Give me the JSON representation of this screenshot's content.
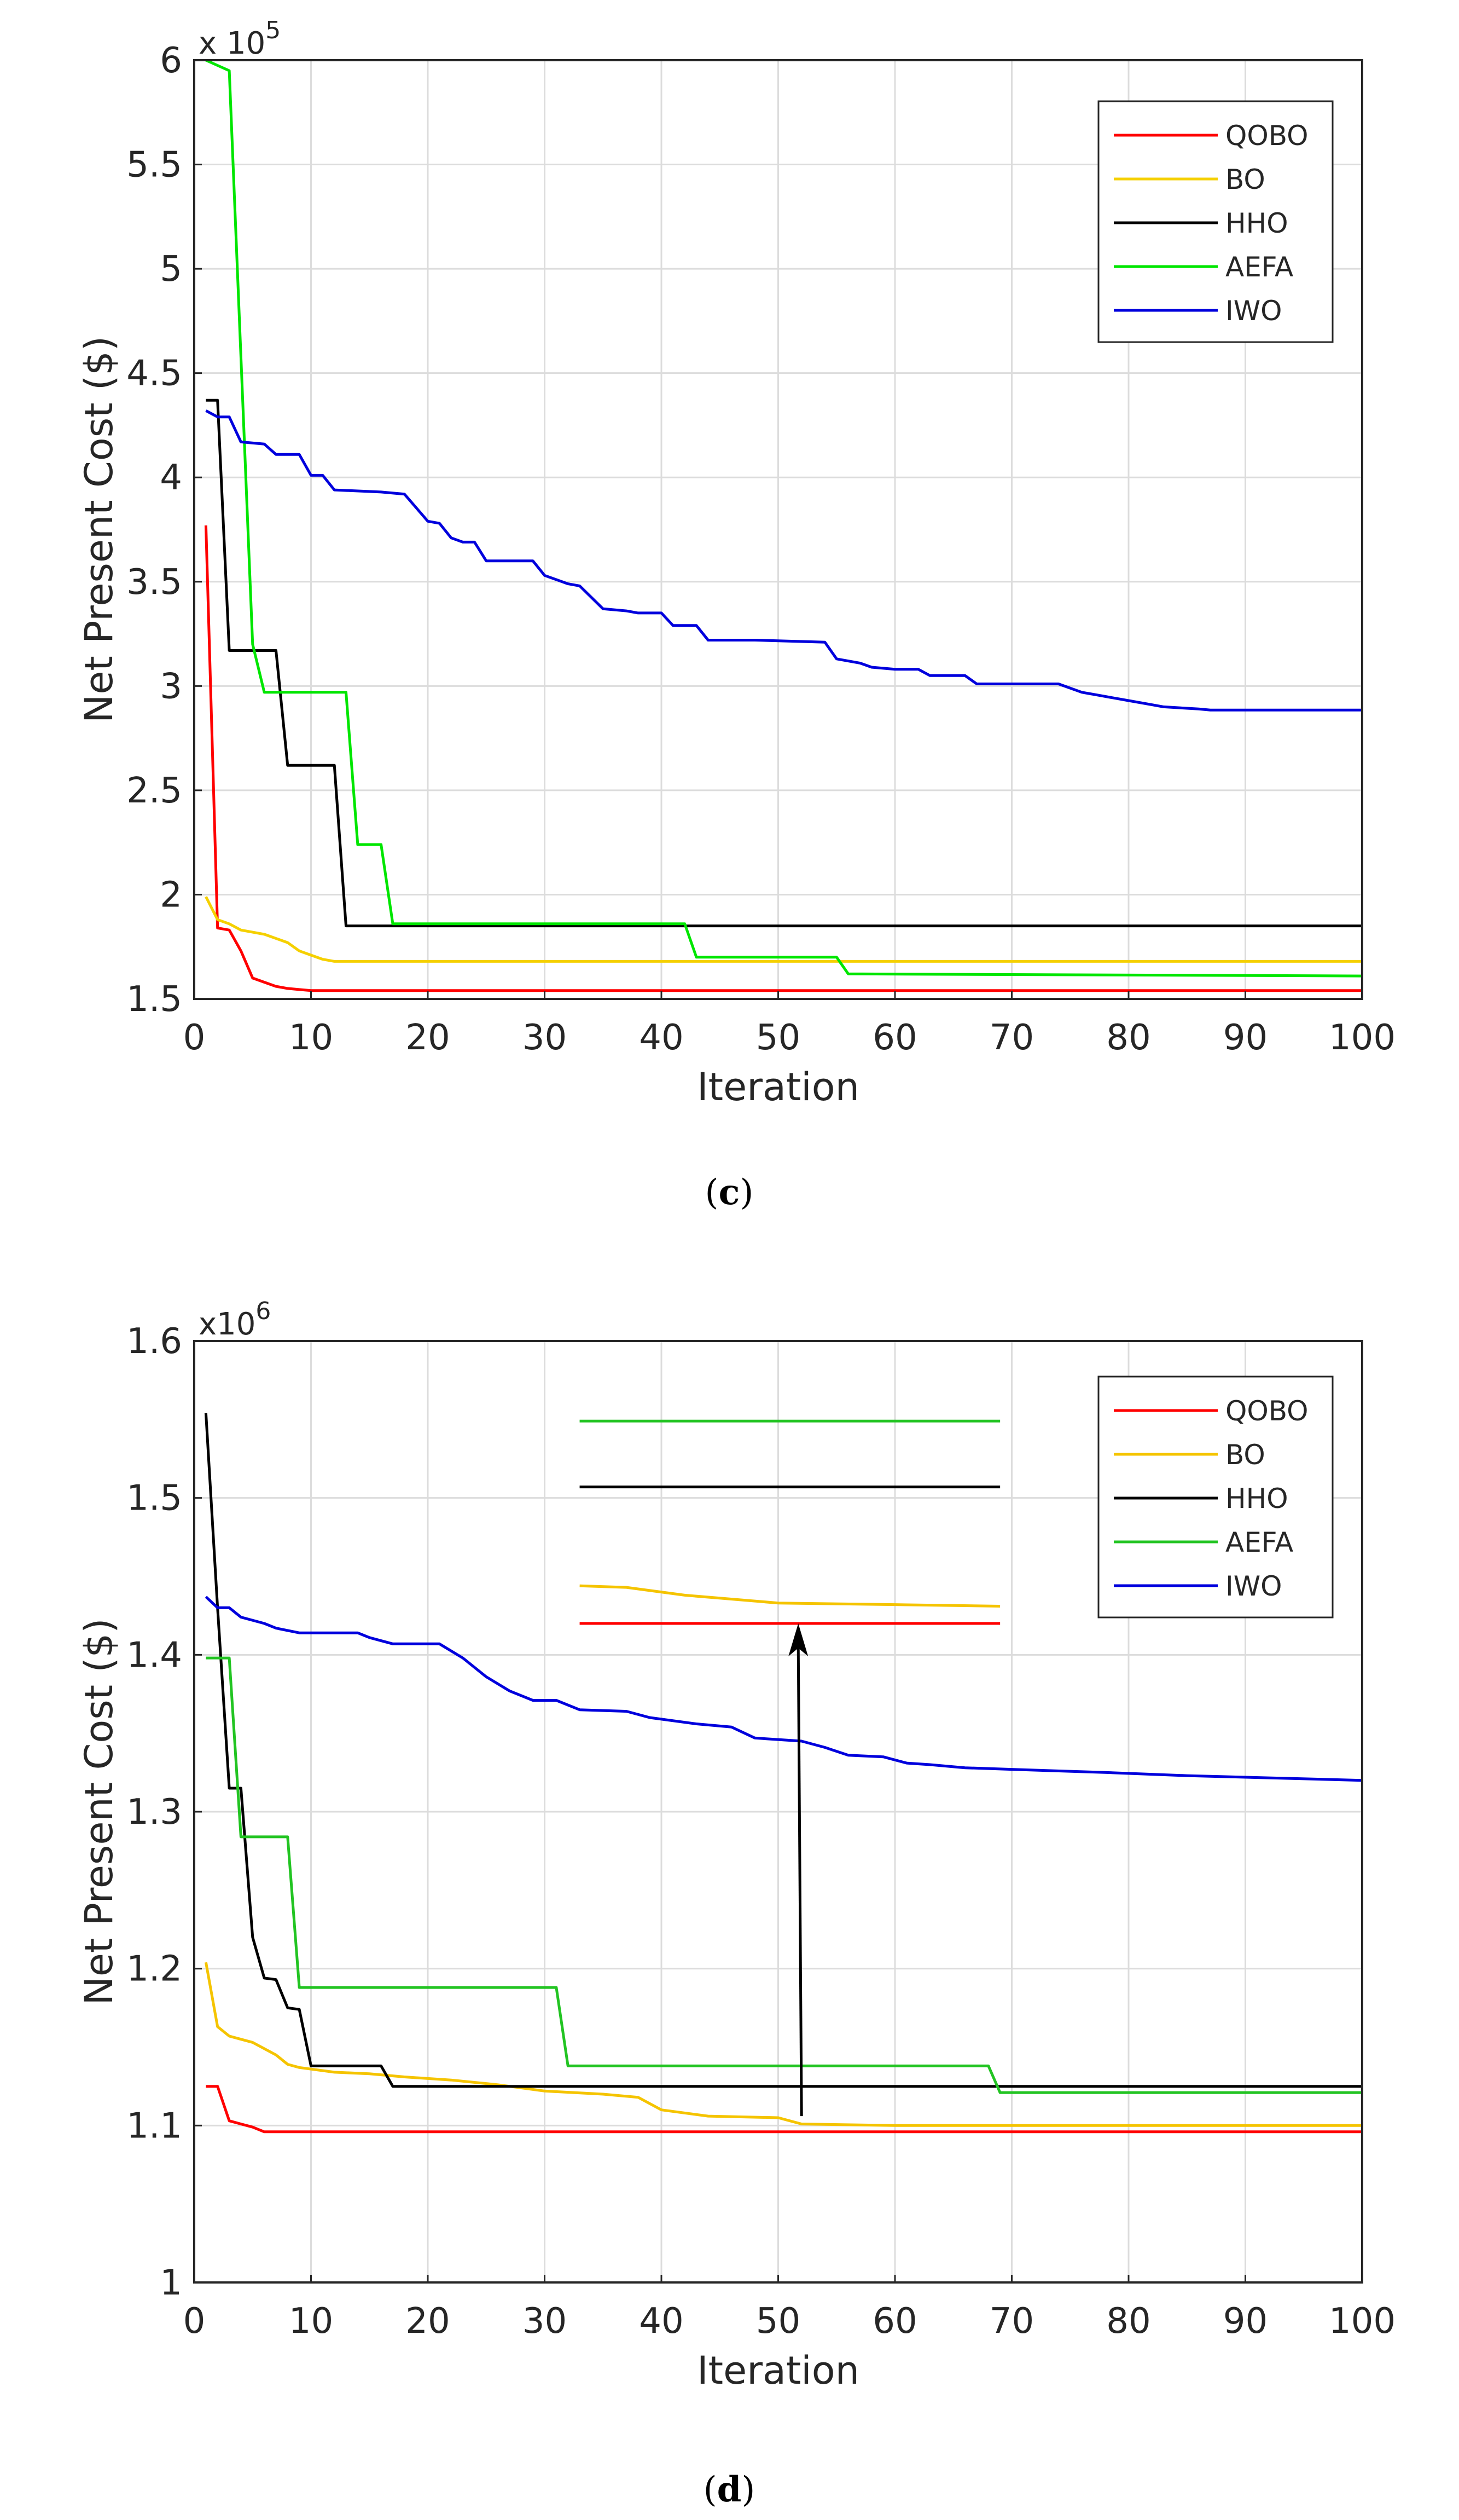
{
  "chart_data": [
    {
      "panel": "c",
      "type": "line",
      "caption_open": "(",
      "caption_letter": "c",
      "caption_close": ")",
      "xlabel": "Iteration",
      "ylabel": "Net Present Cost ($)",
      "multiplier": "x 10",
      "multiplier_exp": "5",
      "xlim": [
        0,
        100
      ],
      "ylim": [
        1.5,
        6
      ],
      "xticks": [
        0,
        10,
        20,
        30,
        40,
        50,
        60,
        70,
        80,
        90,
        100
      ],
      "yticks": [
        1.5,
        2,
        2.5,
        3,
        3.5,
        4,
        4.5,
        5,
        5.5,
        6
      ],
      "ytick_labels": [
        "1.5",
        "2",
        "2.5",
        "3",
        "3.5",
        "4",
        "4.5",
        "5",
        "5.5",
        "6"
      ],
      "grid": true,
      "legend_position": "top-right",
      "series": [
        {
          "name": "QOBO",
          "color": "#ff0000",
          "points": [
            [
              1,
              3.77
            ],
            [
              2,
              1.84
            ],
            [
              3,
              1.83
            ],
            [
              4,
              1.73
            ],
            [
              5,
              1.6
            ],
            [
              6,
              1.58
            ],
            [
              7,
              1.56
            ],
            [
              8,
              1.55
            ],
            [
              9,
              1.545
            ],
            [
              10,
              1.54
            ],
            [
              100,
              1.54
            ]
          ]
        },
        {
          "name": "BO",
          "color": "#f5d000",
          "points": [
            [
              1,
              1.99
            ],
            [
              2,
              1.88
            ],
            [
              3,
              1.86
            ],
            [
              4,
              1.83
            ],
            [
              6,
              1.81
            ],
            [
              8,
              1.77
            ],
            [
              9,
              1.73
            ],
            [
              10,
              1.71
            ],
            [
              11,
              1.69
            ],
            [
              12,
              1.68
            ],
            [
              100,
              1.68
            ]
          ]
        },
        {
          "name": "HHO",
          "color": "#000000",
          "points": [
            [
              1,
              4.37
            ],
            [
              2,
              4.37
            ],
            [
              3,
              3.17
            ],
            [
              7,
              3.17
            ],
            [
              8,
              2.62
            ],
            [
              12,
              2.62
            ],
            [
              13,
              1.85
            ],
            [
              100,
              1.85
            ]
          ]
        },
        {
          "name": "AEFA",
          "color": "#00e600",
          "points": [
            [
              1,
              6.0
            ],
            [
              3,
              5.95
            ],
            [
              5,
              3.2
            ],
            [
              6,
              2.97
            ],
            [
              13,
              2.97
            ],
            [
              14,
              2.24
            ],
            [
              16,
              2.24
            ],
            [
              17,
              1.86
            ],
            [
              42,
              1.86
            ],
            [
              43,
              1.7
            ],
            [
              55,
              1.7
            ],
            [
              56,
              1.62
            ],
            [
              100,
              1.61
            ]
          ]
        },
        {
          "name": "IWO",
          "color": "#0000dd",
          "points": [
            [
              1,
              4.32
            ],
            [
              2,
              4.29
            ],
            [
              3,
              4.29
            ],
            [
              4,
              4.17
            ],
            [
              6,
              4.16
            ],
            [
              7,
              4.11
            ],
            [
              9,
              4.11
            ],
            [
              10,
              4.01
            ],
            [
              11,
              4.01
            ],
            [
              12,
              3.94
            ],
            [
              16,
              3.93
            ],
            [
              18,
              3.92
            ],
            [
              20,
              3.79
            ],
            [
              21,
              3.78
            ],
            [
              22,
              3.71
            ],
            [
              23,
              3.69
            ],
            [
              24,
              3.69
            ],
            [
              25,
              3.6
            ],
            [
              29,
              3.6
            ],
            [
              30,
              3.53
            ],
            [
              32,
              3.49
            ],
            [
              33,
              3.48
            ],
            [
              35,
              3.37
            ],
            [
              37,
              3.36
            ],
            [
              38,
              3.35
            ],
            [
              40,
              3.35
            ],
            [
              41,
              3.29
            ],
            [
              43,
              3.29
            ],
            [
              44,
              3.22
            ],
            [
              48,
              3.22
            ],
            [
              54,
              3.21
            ],
            [
              55,
              3.13
            ],
            [
              57,
              3.11
            ],
            [
              58,
              3.09
            ],
            [
              60,
              3.08
            ],
            [
              62,
              3.08
            ],
            [
              63,
              3.05
            ],
            [
              66,
              3.05
            ],
            [
              67,
              3.01
            ],
            [
              74,
              3.01
            ],
            [
              76,
              2.97
            ],
            [
              77,
              2.96
            ],
            [
              80,
              2.93
            ],
            [
              82,
              2.91
            ],
            [
              83,
              2.9
            ],
            [
              86,
              2.89
            ],
            [
              87,
              2.885
            ],
            [
              100,
              2.885
            ]
          ]
        }
      ]
    },
    {
      "panel": "d",
      "type": "line",
      "caption_open": "(",
      "caption_letter": "d",
      "caption_close": ")",
      "xlabel": "Iteration",
      "ylabel": "Net Present Cost ($)",
      "multiplier": "x10",
      "multiplier_exp": "6",
      "xlim": [
        0,
        100
      ],
      "ylim": [
        1.0,
        1.6
      ],
      "xticks": [
        0,
        10,
        20,
        30,
        40,
        50,
        60,
        70,
        80,
        90,
        100
      ],
      "yticks": [
        1.0,
        1.1,
        1.2,
        1.3,
        1.4,
        1.5,
        1.6
      ],
      "ytick_labels": [
        "1",
        "1.1",
        "1.2",
        "1.3",
        "1.4",
        "1.5",
        "1.6"
      ],
      "grid": true,
      "legend_position": "top-right",
      "annotation": "zoom-inset with arrow pointing up at iteration 52",
      "inset": {
        "x_range": [
          33,
          69
        ],
        "QOBO": 1.42,
        "BO": [
          [
            33,
            1.444
          ],
          [
            37,
            1.443
          ],
          [
            42,
            1.438
          ],
          [
            50,
            1.433
          ],
          [
            60,
            1.432
          ],
          [
            69,
            1.431
          ]
        ],
        "HHO": 1.507,
        "AEFA": 1.549,
        "arrow_x": 52,
        "arrow_from": 1.106,
        "arrow_to": 1.42
      },
      "series": [
        {
          "name": "QOBO",
          "color": "#ff0000",
          "points": [
            [
              1,
              1.125
            ],
            [
              2,
              1.125
            ],
            [
              3,
              1.103
            ],
            [
              4,
              1.101
            ],
            [
              5,
              1.099
            ],
            [
              6,
              1.096
            ],
            [
              100,
              1.096
            ]
          ]
        },
        {
          "name": "BO",
          "color": "#f5c400",
          "points": [
            [
              1,
              1.204
            ],
            [
              2,
              1.163
            ],
            [
              3,
              1.157
            ],
            [
              5,
              1.153
            ],
            [
              7,
              1.145
            ],
            [
              8,
              1.139
            ],
            [
              9,
              1.137
            ],
            [
              12,
              1.134
            ],
            [
              15,
              1.133
            ],
            [
              18,
              1.131
            ],
            [
              22,
              1.129
            ],
            [
              26,
              1.126
            ],
            [
              30,
              1.122
            ],
            [
              35,
              1.12
            ],
            [
              38,
              1.118
            ],
            [
              40,
              1.11
            ],
            [
              44,
              1.106
            ],
            [
              50,
              1.105
            ],
            [
              52,
              1.101
            ],
            [
              60,
              1.1
            ],
            [
              100,
              1.1
            ]
          ]
        },
        {
          "name": "HHO",
          "color": "#000000",
          "points": [
            [
              1,
              1.554
            ],
            [
              2,
              1.43
            ],
            [
              3,
              1.315
            ],
            [
              4,
              1.315
            ],
            [
              5,
              1.22
            ],
            [
              6,
              1.194
            ],
            [
              7,
              1.193
            ],
            [
              8,
              1.175
            ],
            [
              9,
              1.174
            ],
            [
              10,
              1.138
            ],
            [
              16,
              1.138
            ],
            [
              17,
              1.125
            ],
            [
              100,
              1.125
            ]
          ]
        },
        {
          "name": "AEFA",
          "color": "#22c422",
          "points": [
            [
              1,
              1.398
            ],
            [
              3,
              1.398
            ],
            [
              4,
              1.284
            ],
            [
              8,
              1.284
            ],
            [
              9,
              1.188
            ],
            [
              31,
              1.188
            ],
            [
              32,
              1.138
            ],
            [
              68,
              1.138
            ],
            [
              69,
              1.121
            ],
            [
              100,
              1.121
            ]
          ]
        },
        {
          "name": "IWO",
          "color": "#0000dd",
          "points": [
            [
              1,
              1.437
            ],
            [
              2,
              1.43
            ],
            [
              3,
              1.43
            ],
            [
              4,
              1.424
            ],
            [
              6,
              1.42
            ],
            [
              7,
              1.417
            ],
            [
              9,
              1.414
            ],
            [
              14,
              1.414
            ],
            [
              15,
              1.411
            ],
            [
              17,
              1.407
            ],
            [
              21,
              1.407
            ],
            [
              23,
              1.398
            ],
            [
              25,
              1.386
            ],
            [
              27,
              1.377
            ],
            [
              29,
              1.371
            ],
            [
              31,
              1.371
            ],
            [
              33,
              1.365
            ],
            [
              37,
              1.364
            ],
            [
              39,
              1.36
            ],
            [
              43,
              1.356
            ],
            [
              46,
              1.354
            ],
            [
              48,
              1.347
            ],
            [
              52,
              1.345
            ],
            [
              54,
              1.341
            ],
            [
              56,
              1.336
            ],
            [
              59,
              1.335
            ],
            [
              61,
              1.331
            ],
            [
              63,
              1.33
            ],
            [
              66,
              1.328
            ],
            [
              70,
              1.327
            ],
            [
              78,
              1.325
            ],
            [
              85,
              1.323
            ],
            [
              100,
              1.32
            ]
          ]
        }
      ]
    }
  ]
}
